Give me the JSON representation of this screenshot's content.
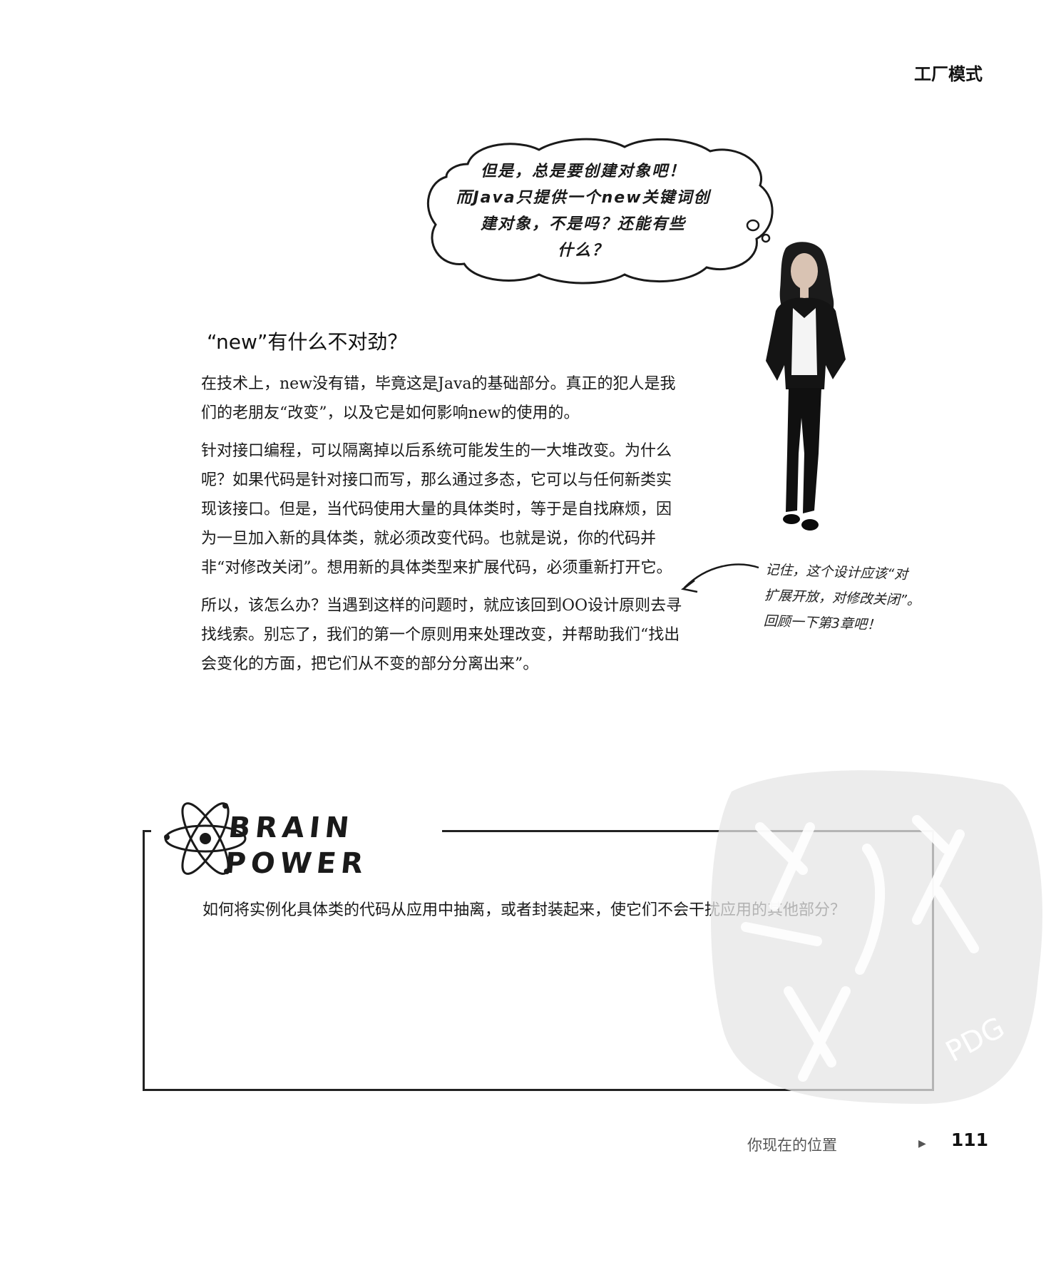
{
  "header": {
    "chapter_title": "工厂模式"
  },
  "thought_bubble": {
    "lines": [
      "但是，总是要创建对象吧！",
      "而Java只提供一个new关键词创",
      "建对象，不是吗？还能有些",
      "什么？"
    ]
  },
  "section": {
    "heading": "“new”有什么不对劲？",
    "paragraphs": [
      "在技术上，new没有错，毕竟这是Java的基础部分。真正的犯人是我们的老朋友“改变”，以及它是如何影响new的使用的。",
      "针对接口编程，可以隔离掉以后系统可能发生的一大堆改变。为什么呢？如果代码是针对接口而写，那么通过多态，它可以与任何新类实现该接口。但是，当代码使用大量的具体类时，等于是自找麻烦，因为一旦加入新的具体类，就必须改变代码。也就是说，你的代码并非“对修改关闭”。想用新的具体类型来扩展代码，必须重新打开它。",
      "所以，该怎么办？当遇到这样的问题时，就应该回到OO设计原则去寻找线索。别忘了，我们的第一个原则用来处理改变，并帮助我们“找出会变化的方面，把它们从不变的部分分离出来”。"
    ]
  },
  "margin_note": {
    "lines": [
      "记住，这个设计应该“对",
      "扩展开放，对修改关闭”。",
      "回顾一下第3章吧！"
    ]
  },
  "brain_power": {
    "title_line1": "BRAIN",
    "title_line2": "POWER",
    "question": "如何将实例化具体类的代码从应用中抽离，或者封装起来，使它们不会干扰应用的其他部分？"
  },
  "watermark": {
    "text": "PDG"
  },
  "footer": {
    "nav_label": "你现在的位置",
    "page_number": "111"
  },
  "icons": [
    "atom-icon",
    "right-arrow-icon",
    "curved-arrow-icon"
  ]
}
